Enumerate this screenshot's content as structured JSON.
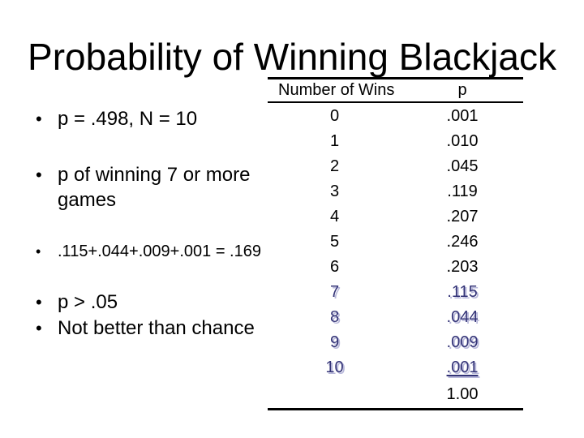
{
  "slide": {
    "title": "Probability of Winning Blackjack",
    "bullet_char": "•",
    "bullets": [
      {
        "text": "p = .498, N = 10"
      },
      {
        "text": "p of winning 7 or more games"
      },
      {
        "text": ".115+.044+.009+.001 = .169"
      },
      {
        "text": "p > .05"
      },
      {
        "text": "Not better than chance"
      }
    ],
    "table": {
      "headers": [
        "Number of Wins",
        "p"
      ],
      "rows": [
        {
          "wins": "0",
          "p": ".001",
          "highlight": false,
          "underline": false
        },
        {
          "wins": "1",
          "p": ".010",
          "highlight": false,
          "underline": false
        },
        {
          "wins": "2",
          "p": ".045",
          "highlight": false,
          "underline": false
        },
        {
          "wins": "3",
          "p": ".119",
          "highlight": false,
          "underline": false
        },
        {
          "wins": "4",
          "p": ".207",
          "highlight": false,
          "underline": false
        },
        {
          "wins": "5",
          "p": ".246",
          "highlight": false,
          "underline": false
        },
        {
          "wins": "6",
          "p": ".203",
          "highlight": false,
          "underline": false
        },
        {
          "wins": "7",
          "p": ".115",
          "highlight": true,
          "underline": false
        },
        {
          "wins": "8",
          "p": ".044",
          "highlight": true,
          "underline": false
        },
        {
          "wins": "9",
          "p": ".009",
          "highlight": true,
          "underline": false
        },
        {
          "wins": "10",
          "p": ".001",
          "highlight": true,
          "underline": true
        }
      ],
      "total": "1.00"
    },
    "colors": {
      "text": "#000000",
      "background": "#ffffff",
      "highlight": "#333377",
      "highlight_shadow": "#b8b8da"
    }
  }
}
